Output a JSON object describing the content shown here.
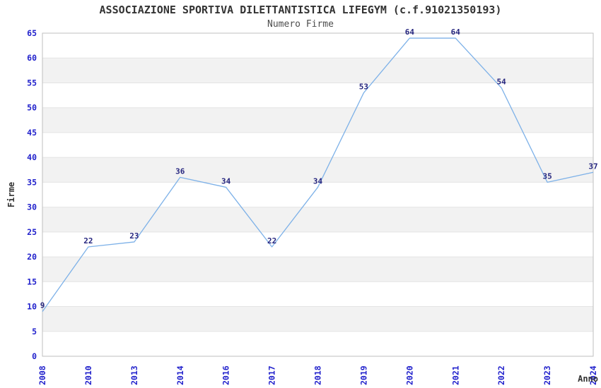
{
  "chart_data": {
    "type": "line",
    "title": "ASSOCIAZIONE SPORTIVA DILETTANTISTICA LIFEGYM (c.f.91021350193)",
    "subtitle": "Numero Firme",
    "xlabel": "Anno",
    "ylabel": "Firme",
    "x": [
      "2008",
      "2010",
      "2013",
      "2014",
      "2016",
      "2017",
      "2018",
      "2019",
      "2020",
      "2021",
      "2022",
      "2023",
      "2024"
    ],
    "values": [
      9,
      22,
      23,
      36,
      34,
      22,
      34,
      53,
      64,
      64,
      54,
      35,
      37
    ],
    "ylim": [
      0,
      65
    ],
    "ytick_step": 5,
    "grid": "horizontal-only",
    "stripe_bands": "alternating 5-unit gray bands (5-10, 15-20, 25-30, 35-40, 45-50, 55-60)",
    "legend": "none",
    "colors": {
      "line": "#7db1e8",
      "point_label": "#26267f",
      "tick_label": "#2222cc",
      "band": "#f2f2f2",
      "gridline": "#e4e4e4",
      "border": "#bfbfbf",
      "title": "#333333",
      "subtitle": "#4d4d4d",
      "axis_label": "#333333",
      "background": "#ffffff"
    }
  }
}
